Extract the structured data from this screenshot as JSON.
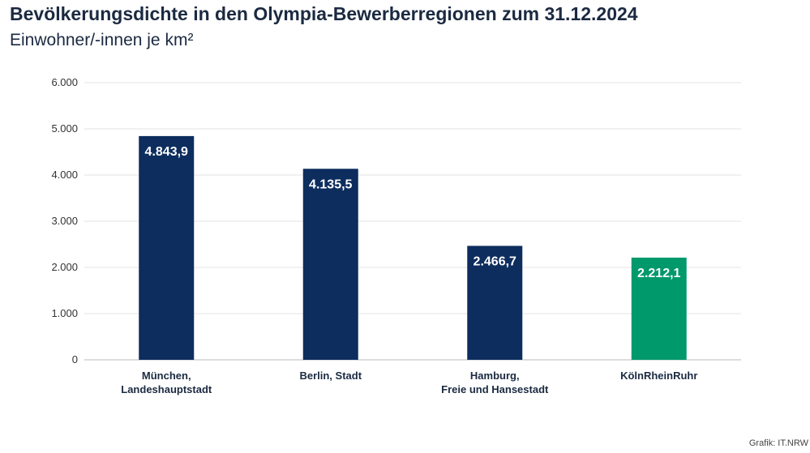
{
  "header": {
    "title": "Bevölkerungsdichte in den Olympia-Bewerberregionen zum 31.12.2024",
    "subtitle": "Einwohner/-innen je km²"
  },
  "footer": {
    "credit": "Grafik: IT.NRW"
  },
  "colors": {
    "primary_bar": "#0d2d5e",
    "highlight_bar": "#00996b",
    "grid": "#e3e3e3",
    "axis": "#bbbbbb"
  },
  "chart_data": {
    "type": "bar",
    "title": "Bevölkerungsdichte in den Olympia-Bewerberregionen zum 31.12.2024",
    "subtitle": "Einwohner/-innen je km²",
    "categories": [
      [
        "München,",
        "Landeshauptstadt"
      ],
      [
        "Berlin, Stadt"
      ],
      [
        "Hamburg,",
        "Freie und Hansestadt"
      ],
      [
        "KölnRheinRuhr"
      ]
    ],
    "values": [
      4843.9,
      4135.5,
      2466.7,
      2212.1
    ],
    "value_labels": [
      "4.843,9",
      "4.135,5",
      "2.466,7",
      "2.212,1"
    ],
    "bar_colors": [
      "#0d2d5e",
      "#0d2d5e",
      "#0d2d5e",
      "#00996b"
    ],
    "ylim": [
      0,
      6000
    ],
    "yticks": [
      0,
      1000,
      2000,
      3000,
      4000,
      5000,
      6000
    ],
    "ytick_labels": [
      "0",
      "1.000",
      "2.000",
      "3.000",
      "4.000",
      "5.000",
      "6.000"
    ],
    "grid": true,
    "legend": "none"
  }
}
